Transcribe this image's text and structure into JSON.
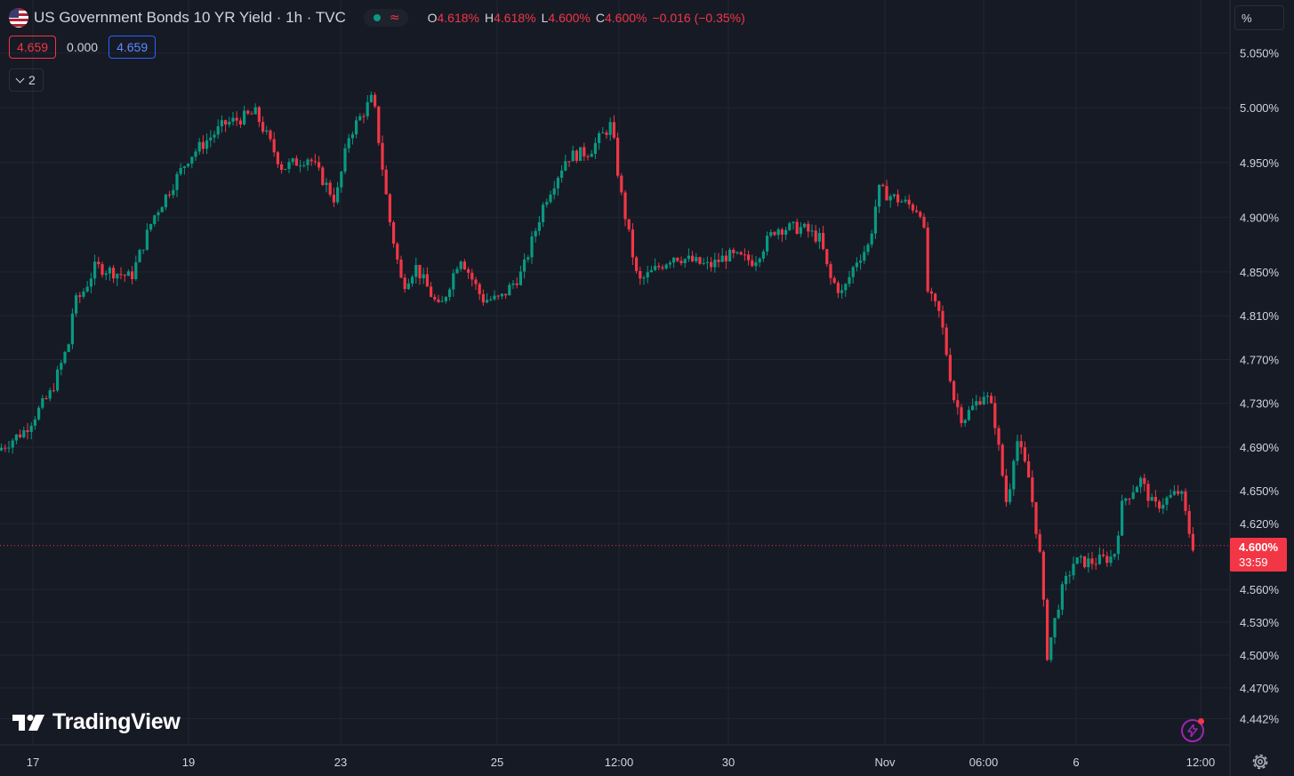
{
  "header": {
    "symbol_title": "US Government Bonds 10 YR Yield · 1h · TVC",
    "status_market_icon": "market-open-dot-icon",
    "status_wave_icon": "approx-wave-icon",
    "ohlc": {
      "open_label": "O",
      "open_value": "4.618%",
      "high_label": "H",
      "high_value": "4.618%",
      "low_label": "L",
      "low_value": "4.600%",
      "close_label": "C",
      "close_value": "4.600%",
      "change": "−0.016 (−0.35%)"
    }
  },
  "quote": {
    "sell": "4.659",
    "spread": "0.000",
    "buy": "4.659"
  },
  "indicators_toggle": {
    "count": "2"
  },
  "price_scale": {
    "unit_label": "%",
    "current_price": "4.600%",
    "countdown": "33:59"
  },
  "branding": {
    "logo_text": "TradingView"
  },
  "colors": {
    "background": "#161a25",
    "grid": "#232631",
    "up": "#089981",
    "down": "#f23645",
    "text": "#d1d4dc",
    "accent_purple": "#9c27b0",
    "accent_blue": "#2962ff"
  },
  "chart_data": {
    "type": "candlestick",
    "title": "US Government Bonds 10 YR Yield · 1h · TVC",
    "y_unit": "%",
    "ylim": [
      4.435,
      5.07
    ],
    "y_ticks": [
      "5.050%",
      "5.000%",
      "4.950%",
      "4.900%",
      "4.850%",
      "4.810%",
      "4.770%",
      "4.730%",
      "4.690%",
      "4.650%",
      "4.620%",
      "4.560%",
      "4.530%",
      "4.500%",
      "4.470%",
      "4.442%"
    ],
    "x_ticks": [
      "17",
      "19",
      "23",
      "25",
      "12:00",
      "30",
      "Nov",
      "06:00",
      "6",
      "12:00"
    ],
    "current_price": 4.6,
    "grid": true,
    "path_points": [
      [
        0,
        4.687
      ],
      [
        30,
        4.705
      ],
      [
        60,
        4.74
      ],
      [
        80,
        4.785
      ],
      [
        85,
        4.82
      ],
      [
        95,
        4.83
      ],
      [
        110,
        4.855
      ],
      [
        150,
        4.845
      ],
      [
        175,
        4.9
      ],
      [
        215,
        4.955
      ],
      [
        255,
        4.985
      ],
      [
        290,
        4.995
      ],
      [
        320,
        4.945
      ],
      [
        350,
        4.955
      ],
      [
        380,
        4.915
      ],
      [
        395,
        4.975
      ],
      [
        422,
        5.01
      ],
      [
        440,
        4.9
      ],
      [
        455,
        4.837
      ],
      [
        470,
        4.855
      ],
      [
        497,
        4.815
      ],
      [
        520,
        4.865
      ],
      [
        545,
        4.825
      ],
      [
        565,
        4.825
      ],
      [
        590,
        4.85
      ],
      [
        615,
        4.915
      ],
      [
        640,
        4.955
      ],
      [
        665,
        4.96
      ],
      [
        690,
        4.985
      ],
      [
        700,
        4.925
      ],
      [
        720,
        4.84
      ],
      [
        760,
        4.865
      ],
      [
        800,
        4.855
      ],
      [
        820,
        4.865
      ],
      [
        850,
        4.86
      ],
      [
        875,
        4.89
      ],
      [
        905,
        4.89
      ],
      [
        925,
        4.88
      ],
      [
        935,
        4.845
      ],
      [
        950,
        4.83
      ],
      [
        965,
        4.86
      ],
      [
        980,
        4.875
      ],
      [
        990,
        4.925
      ],
      [
        1040,
        4.905
      ],
      [
        1046,
        4.83
      ],
      [
        1060,
        4.81
      ],
      [
        1075,
        4.735
      ],
      [
        1085,
        4.715
      ],
      [
        1110,
        4.74
      ],
      [
        1120,
        4.72
      ],
      [
        1135,
        4.635
      ],
      [
        1145,
        4.7
      ],
      [
        1160,
        4.66
      ],
      [
        1172,
        4.59
      ],
      [
        1180,
        4.5
      ],
      [
        1195,
        4.555
      ],
      [
        1210,
        4.585
      ],
      [
        1230,
        4.585
      ],
      [
        1255,
        4.59
      ],
      [
        1265,
        4.64
      ],
      [
        1285,
        4.66
      ],
      [
        1300,
        4.635
      ],
      [
        1330,
        4.65
      ],
      [
        1343,
        4.6
      ]
    ]
  }
}
